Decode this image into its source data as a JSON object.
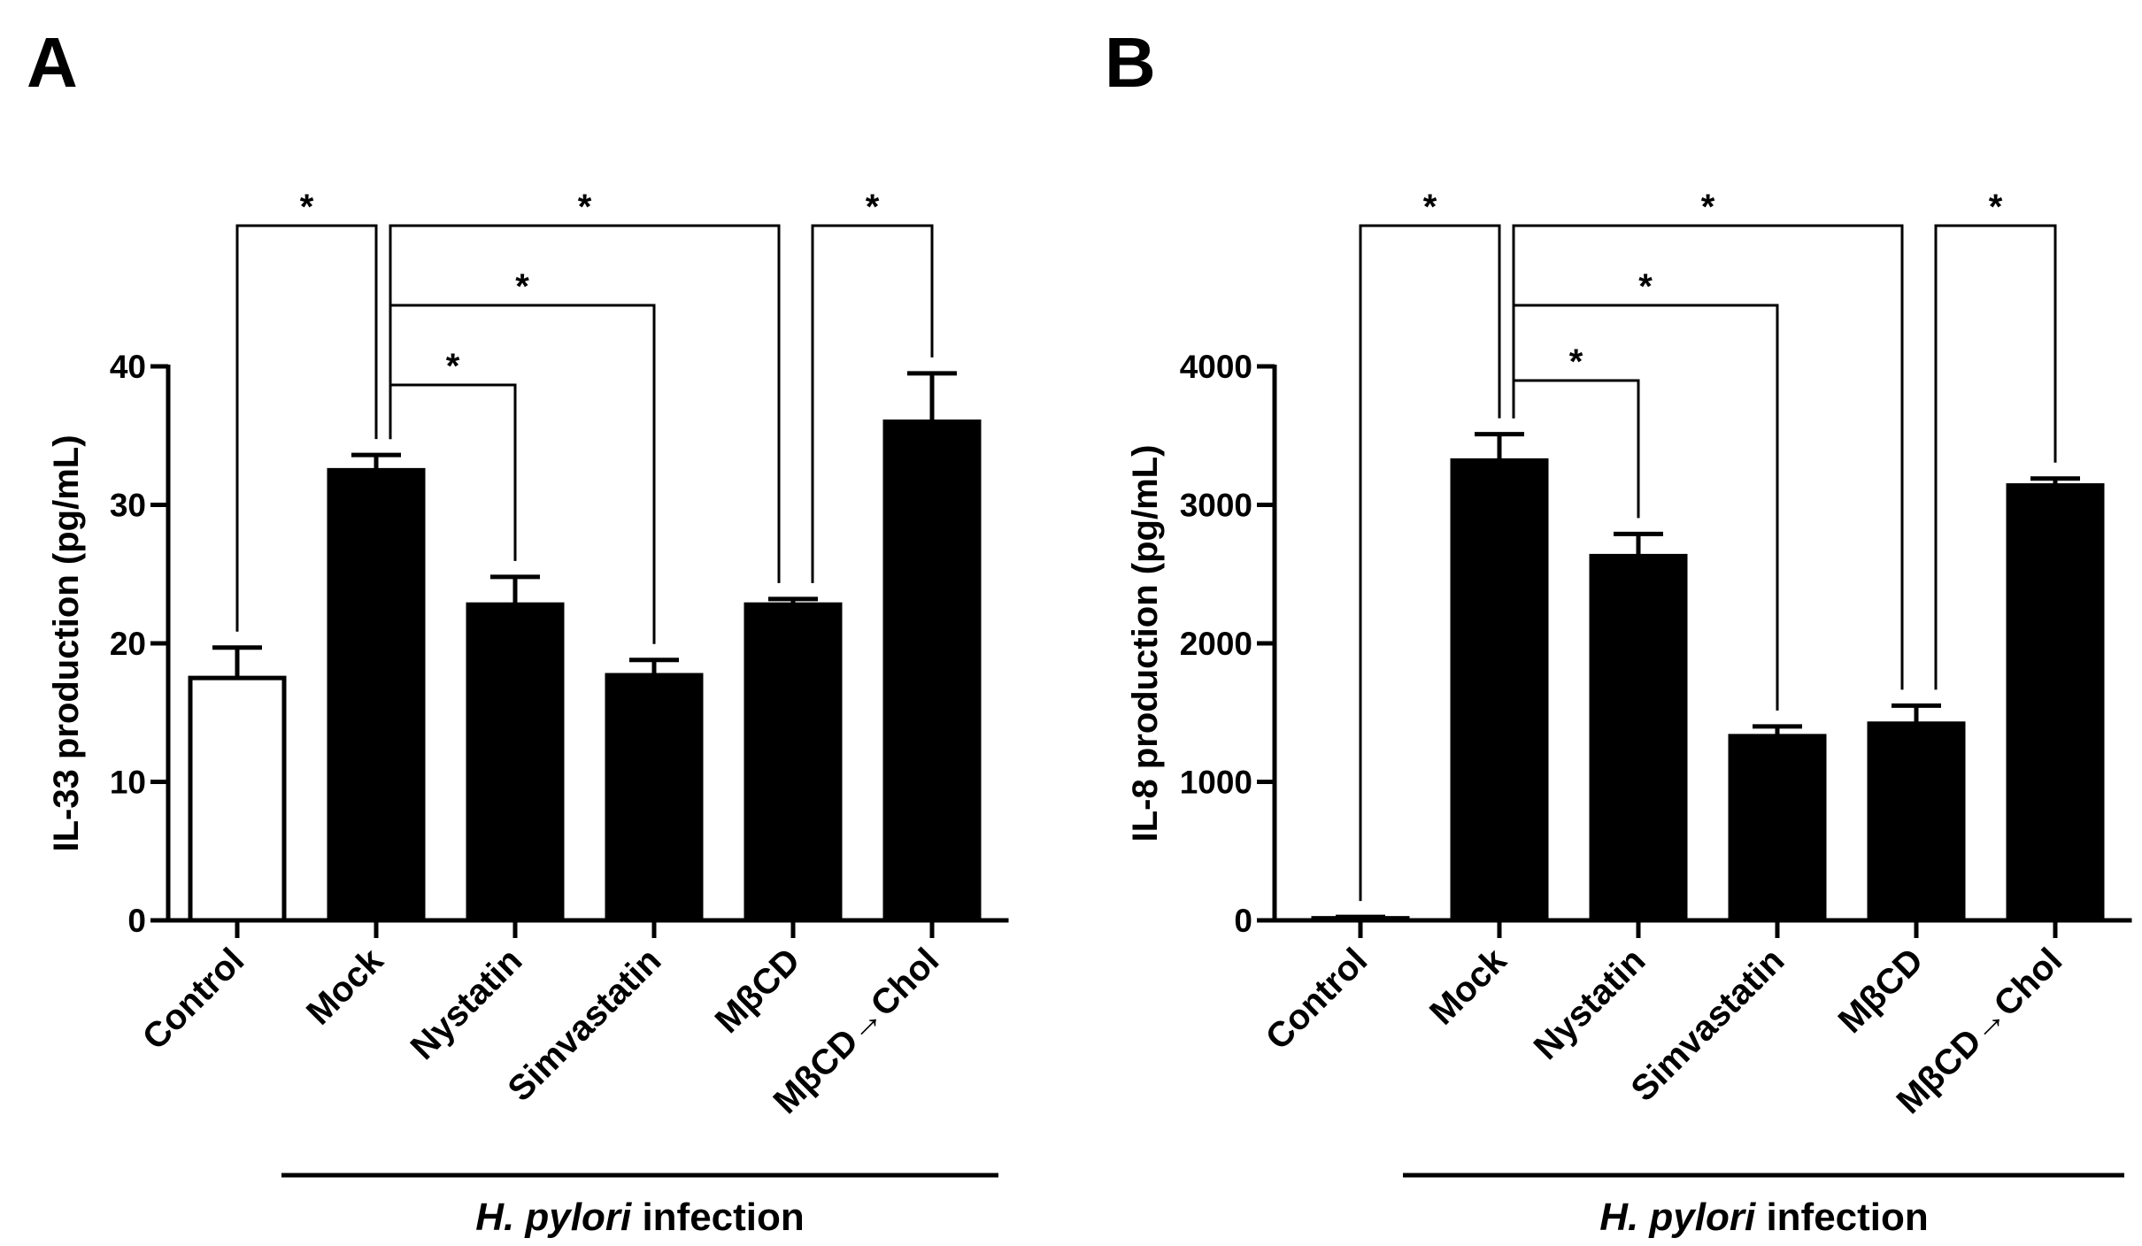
{
  "chart_data": [
    {
      "panel": "A",
      "type": "bar",
      "categories": [
        "Control",
        "Mock",
        "Nystatin",
        "Simvastatin",
        "MβCD",
        "MβCD→Chol"
      ],
      "values": [
        17.5,
        32.5,
        22.8,
        17.7,
        22.8,
        36.0
      ],
      "errors": [
        2.2,
        1.1,
        2.0,
        1.1,
        0.4,
        3.5
      ],
      "bar_fill": [
        "#ffffff",
        "#000000",
        "#000000",
        "#000000",
        "#000000",
        "#000000"
      ],
      "ylabel": "IL-33 production (pg/mL)",
      "ylim": [
        0,
        40
      ],
      "yticks": [
        "0",
        "10",
        "20",
        "30",
        "40"
      ],
      "ytick_values": [
        0,
        10,
        20,
        30,
        40
      ],
      "group_label": {
        "italic": "H. pylori",
        "rest": " infection",
        "span": [
          1,
          5
        ]
      },
      "significance": [
        {
          "from": 0,
          "to": 1,
          "label": "*"
        },
        {
          "from": 1,
          "to": 4,
          "label": "*"
        },
        {
          "from": 4,
          "to": 5,
          "label": "*"
        },
        {
          "from": 1,
          "to": 3,
          "label": "*"
        },
        {
          "from": 1,
          "to": 2,
          "label": "*"
        }
      ]
    },
    {
      "panel": "B",
      "type": "bar",
      "categories": [
        "Control",
        "Mock",
        "Nystatin",
        "Simvastatin",
        "MβCD",
        "MβCD→Chol"
      ],
      "values": [
        15,
        3320,
        2630,
        1330,
        1420,
        3140
      ],
      "errors": [
        10,
        190,
        160,
        70,
        130,
        50
      ],
      "bar_fill": [
        "#ffffff",
        "#000000",
        "#000000",
        "#000000",
        "#000000",
        "#000000"
      ],
      "ylabel": "IL-8 production (pg/mL)",
      "ylim": [
        0,
        4000
      ],
      "yticks": [
        "0",
        "1000",
        "2000",
        "3000",
        "4000"
      ],
      "ytick_values": [
        0,
        1000,
        2000,
        3000,
        4000
      ],
      "group_label": {
        "italic": "H. pylori",
        "rest": " infection",
        "span": [
          1,
          5
        ]
      },
      "significance": [
        {
          "from": 0,
          "to": 1,
          "label": "*"
        },
        {
          "from": 1,
          "to": 4,
          "label": "*"
        },
        {
          "from": 4,
          "to": 5,
          "label": "*"
        },
        {
          "from": 1,
          "to": 3,
          "label": "*"
        },
        {
          "from": 1,
          "to": 2,
          "label": "*"
        }
      ]
    }
  ]
}
